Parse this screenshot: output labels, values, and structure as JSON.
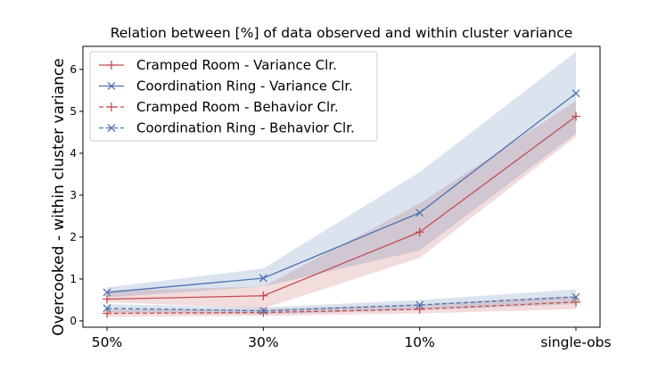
{
  "chart_data": {
    "type": "line",
    "title": "Relation between [%] of data observed and within cluster variance",
    "xlabel": "",
    "ylabel": "Overcooked - within cluster variance",
    "categories": [
      "50%",
      "30%",
      "10%",
      "single-obs"
    ],
    "ylim": [
      -0.15,
      6.55
    ],
    "yticks": [
      "0",
      "1",
      "2",
      "3",
      "4",
      "5",
      "6"
    ],
    "grid": false,
    "legend_position": "top-left",
    "series": [
      {
        "name": "Cramped Room - Variance Clr.",
        "color": "#c44e52",
        "linestyle": "solid",
        "marker": "plus",
        "values": [
          0.52,
          0.6,
          2.12,
          4.88
        ],
        "band_low": [
          0.45,
          0.3,
          1.5,
          4.4
        ],
        "band_high": [
          0.72,
          0.82,
          2.8,
          5.25
        ]
      },
      {
        "name": "Coordination Ring - Variance Clr.",
        "color": "#4c72b0",
        "linestyle": "solid",
        "marker": "x",
        "values": [
          0.68,
          1.02,
          2.58,
          5.43
        ],
        "band_low": [
          0.56,
          0.82,
          1.68,
          4.47
        ],
        "band_high": [
          0.8,
          1.25,
          3.55,
          6.42
        ]
      },
      {
        "name": "Cramped Room - Behavior Clr.",
        "color": "#c44e52",
        "linestyle": "dashed",
        "marker": "plus",
        "values": [
          0.18,
          0.2,
          0.28,
          0.45
        ],
        "band_low": [
          0.1,
          0.12,
          0.18,
          0.28
        ],
        "band_high": [
          0.27,
          0.28,
          0.4,
          0.6
        ]
      },
      {
        "name": "Coordination Ring - Behavior Clr.",
        "color": "#4c72b0",
        "linestyle": "dashed",
        "marker": "x",
        "values": [
          0.3,
          0.24,
          0.38,
          0.57
        ],
        "band_low": [
          0.2,
          0.16,
          0.26,
          0.4
        ],
        "band_high": [
          0.4,
          0.32,
          0.5,
          0.75
        ]
      }
    ]
  }
}
